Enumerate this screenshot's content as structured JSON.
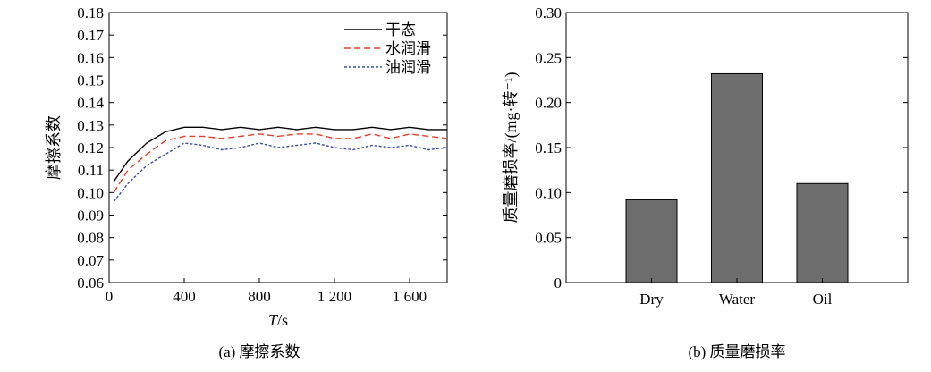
{
  "chart_data": [
    {
      "type": "line",
      "caption": "(a) 摩擦系数",
      "xlabel_italic": "T",
      "xlabel_unit": "/s",
      "ylabel": "摩擦系数",
      "xlim": [
        0,
        1800
      ],
      "ylim": [
        0.06,
        0.18
      ],
      "xticks": [
        0,
        400,
        800,
        1200,
        1600
      ],
      "xtick_labels": [
        "0",
        "400",
        "800",
        "1 200",
        "1 600"
      ],
      "yticks": [
        0.06,
        0.07,
        0.08,
        0.09,
        0.1,
        0.11,
        0.12,
        0.13,
        0.14,
        0.15,
        0.16,
        0.17,
        0.18
      ],
      "ytick_labels": [
        "0.06",
        "0.07",
        "0.08",
        "0.09",
        "0.10",
        "0.11",
        "0.12",
        "0.13",
        "0.14",
        "0.15",
        "0.16",
        "0.17",
        "0.18"
      ],
      "legend": "top-right",
      "grid": false,
      "series": [
        {
          "name": "干态",
          "color": "#000000",
          "style": "solid",
          "x": [
            25,
            100,
            200,
            300,
            400,
            500,
            600,
            700,
            800,
            900,
            1000,
            1100,
            1200,
            1300,
            1400,
            1500,
            1600,
            1700,
            1800
          ],
          "y": [
            0.105,
            0.114,
            0.122,
            0.127,
            0.129,
            0.129,
            0.128,
            0.129,
            0.128,
            0.129,
            0.128,
            0.129,
            0.128,
            0.128,
            0.129,
            0.128,
            0.129,
            0.128,
            0.128
          ]
        },
        {
          "name": "水润滑",
          "color": "#e2402a",
          "style": "dashed",
          "x": [
            25,
            100,
            200,
            300,
            400,
            500,
            600,
            700,
            800,
            900,
            1000,
            1100,
            1200,
            1300,
            1400,
            1500,
            1600,
            1700,
            1800
          ],
          "y": [
            0.1,
            0.11,
            0.117,
            0.123,
            0.125,
            0.125,
            0.124,
            0.125,
            0.126,
            0.125,
            0.126,
            0.126,
            0.124,
            0.124,
            0.126,
            0.124,
            0.126,
            0.125,
            0.124
          ]
        },
        {
          "name": "油润滑",
          "color": "#3a4fa6",
          "style": "dotted",
          "x": [
            25,
            100,
            200,
            300,
            400,
            500,
            600,
            700,
            800,
            900,
            1000,
            1100,
            1200,
            1300,
            1400,
            1500,
            1600,
            1700,
            1800
          ],
          "y": [
            0.096,
            0.104,
            0.112,
            0.117,
            0.122,
            0.121,
            0.119,
            0.12,
            0.122,
            0.12,
            0.121,
            0.122,
            0.12,
            0.119,
            0.121,
            0.12,
            0.121,
            0.119,
            0.12
          ]
        }
      ]
    },
    {
      "type": "bar",
      "caption": "(b) 质量磨损率",
      "ylabel": "质量磨损率/(mg·转⁻¹)",
      "categories": [
        "Dry",
        "Water",
        "Oil"
      ],
      "values": [
        0.092,
        0.232,
        0.11
      ],
      "ylim": [
        0,
        0.3
      ],
      "yticks": [
        0,
        0.05,
        0.1,
        0.15,
        0.2,
        0.25,
        0.3
      ],
      "ytick_labels": [
        "0",
        "0.05",
        "0.10",
        "0.15",
        "0.20",
        "0.25",
        "0.30"
      ],
      "bar_color": "#6e6e6e",
      "grid": false
    }
  ]
}
